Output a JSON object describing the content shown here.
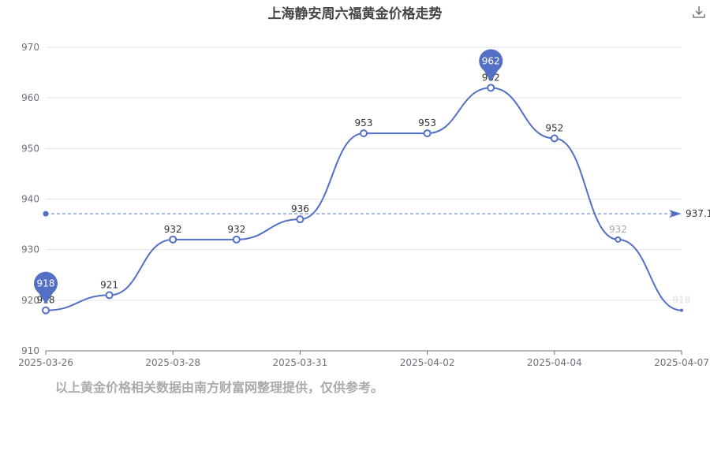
{
  "chart_data": {
    "type": "line",
    "title": "上海静安周六福黄金价格走势",
    "x_tick_labels": [
      "2025-03-26",
      "2025-03-28",
      "2025-03-31",
      "2025-04-02",
      "2025-04-04",
      "2025-04-07"
    ],
    "values": [
      918,
      921,
      932,
      932,
      936,
      953,
      953,
      962,
      952,
      932,
      918
    ],
    "ylim": [
      910,
      970
    ],
    "y_ticks": [
      910,
      920,
      930,
      940,
      950,
      960,
      970
    ],
    "grid": true,
    "smooth": true,
    "series_color": "#5470c6",
    "mark_points": [
      {
        "type": "min",
        "value": 918,
        "label": "918"
      },
      {
        "type": "max",
        "value": 962,
        "label": "962"
      }
    ],
    "mark_line": {
      "type": "average",
      "value": 937.1,
      "label": "937.1"
    },
    "legend": "none"
  },
  "footnote": "以上黄金价格相关数据由南方财富网整理提供，仅供参考。",
  "toolbox": {
    "download_icon": "download-icon"
  }
}
